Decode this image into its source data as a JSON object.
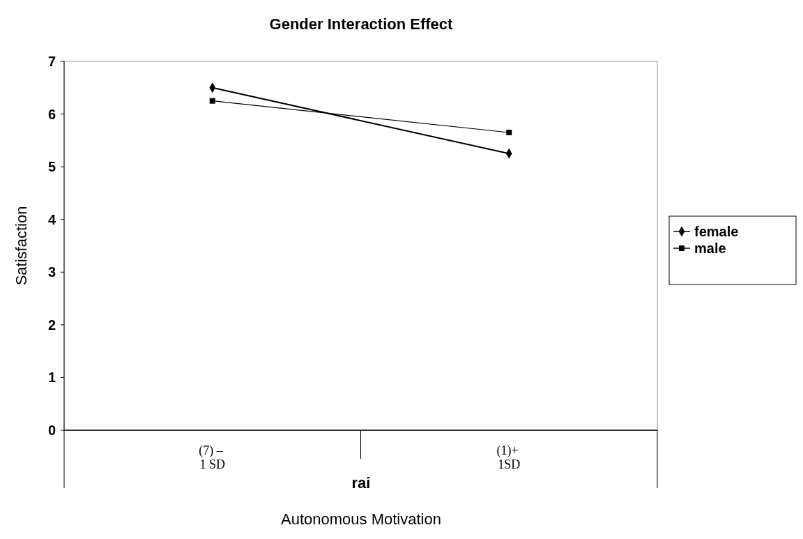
{
  "chart_data": {
    "type": "line",
    "title": "Gender Interaction Effect",
    "xlabel": "rai",
    "ylabel": "Satisfaction",
    "annotations": [
      "Autonomous Motivation"
    ],
    "categories": [
      "(7) – 1 SD",
      "(1)+ 1SD"
    ],
    "series": [
      {
        "name": "female",
        "color": "#000000",
        "values": [
          6.5,
          5.25
        ],
        "marker": "diamond"
      },
      {
        "name": "male",
        "color": "#000000",
        "values": [
          6.25,
          5.65
        ],
        "marker": "square"
      }
    ],
    "ylim": [
      0,
      7
    ],
    "yticks": [
      0,
      1,
      2,
      3,
      4,
      5,
      6,
      7
    ],
    "grid": false,
    "legend": "right"
  }
}
